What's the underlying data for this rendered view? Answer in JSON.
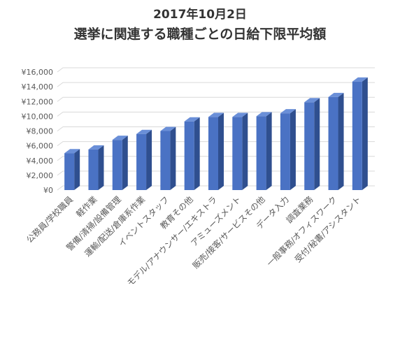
{
  "chart_data": {
    "type": "bar",
    "title_lines": [
      "2017年10月2日",
      "選挙に関連する職種ごとの日給下限平均額"
    ],
    "categories": [
      "公務員/学校職員",
      "軽作業",
      "警備/清掃/設備管理",
      "運輸/配送/倉庫系作業",
      "イベントスタッフ",
      "教育その他",
      "モデル/アナウンサー/エキストラ",
      "アミューズメント",
      "販売/接客/サービスその他",
      "データ入力",
      "調査業務",
      "一般事務/オフィスワーク",
      "受付/秘書/アシスタント"
    ],
    "values": [
      5000,
      5500,
      6800,
      7600,
      8000,
      9300,
      9900,
      9900,
      10000,
      10400,
      11900,
      12600,
      14700
    ],
    "ylim": [
      0,
      16000
    ],
    "ytick_step": 2000,
    "ytick_labels": [
      "¥0",
      "¥2,000",
      "¥4,000",
      "¥6,000",
      "¥8,000",
      "¥10,000",
      "¥12,000",
      "¥14,000",
      "¥16,000"
    ],
    "grid": true,
    "legend": "none",
    "colors": {
      "bar_front": "#4a72c4",
      "bar_side": "#2f4f8f",
      "bar_top": "#6a8fd8",
      "grid": "#d9d9d9",
      "axis_text": "#595959",
      "title": "#333333"
    }
  }
}
